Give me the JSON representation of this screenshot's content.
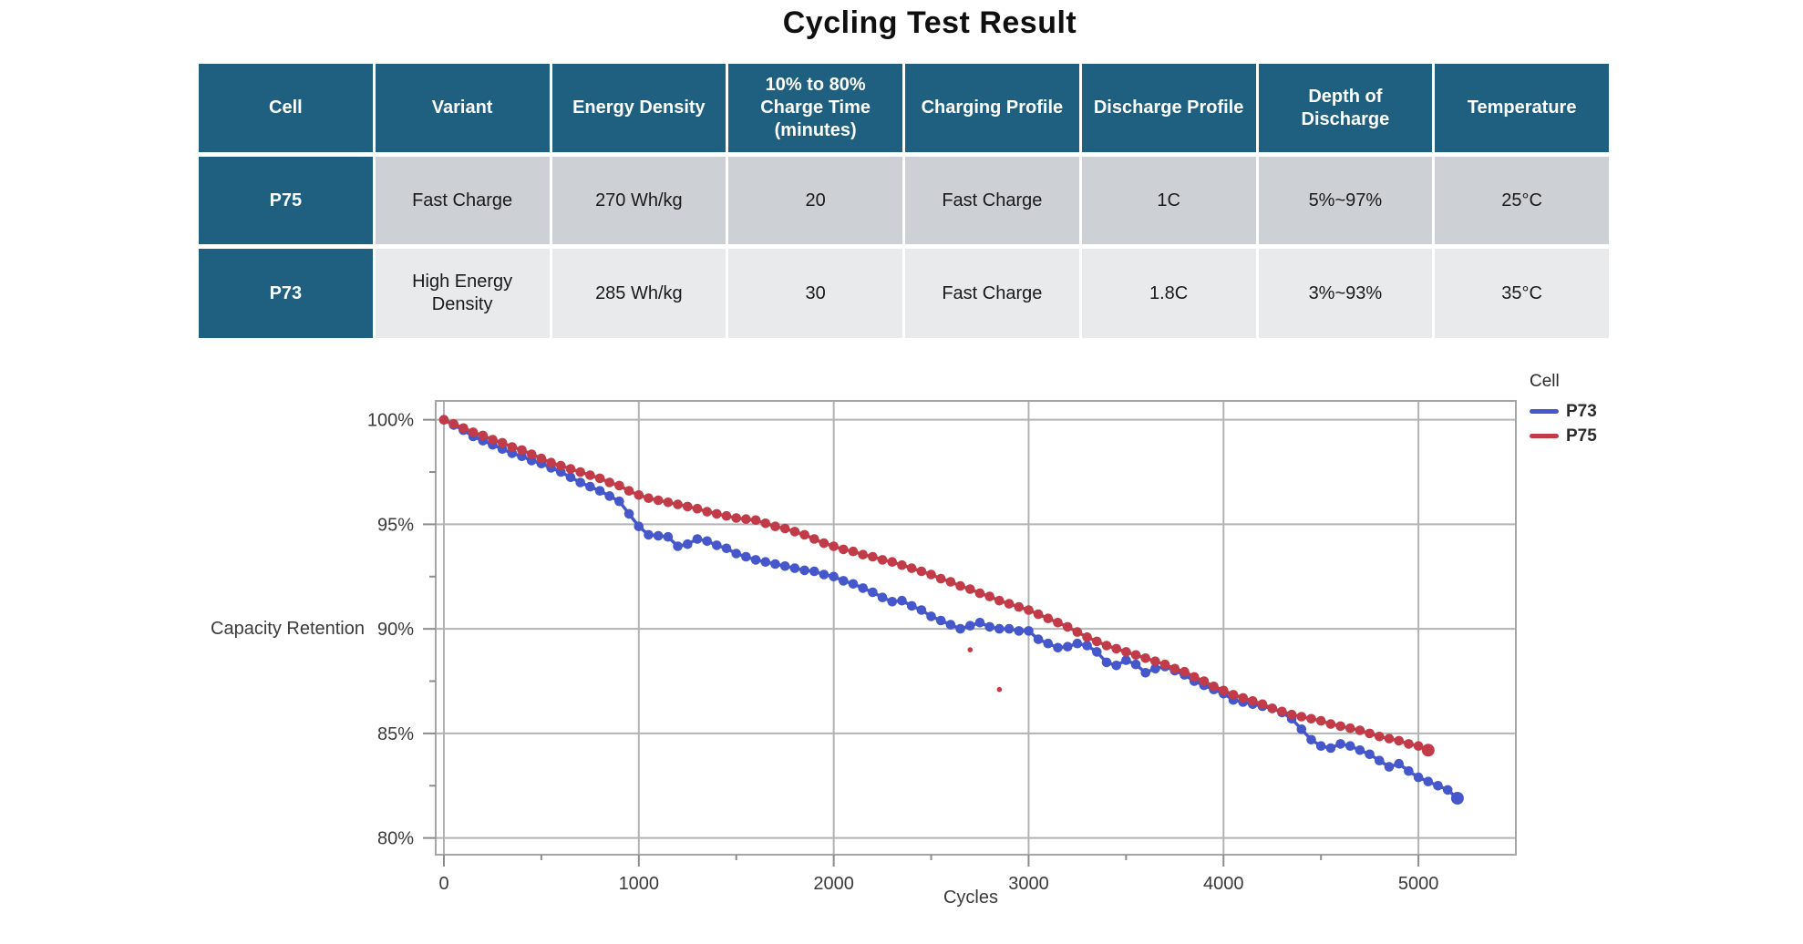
{
  "title": "Cycling Test Result",
  "table": {
    "headers": [
      "Cell",
      "Variant",
      "Energy Density",
      "10% to 80% Charge Time (minutes)",
      "Charging Profile",
      "Discharge Profile",
      "Depth of Discharge",
      "Temperature"
    ],
    "rows": [
      [
        "P75",
        "Fast Charge",
        "270 Wh/kg",
        "20",
        "Fast Charge",
        "1C",
        "5%~97%",
        "25°C"
      ],
      [
        "P73",
        "High Energy Density",
        "285 Wh/kg",
        "30",
        "Fast Charge",
        "1.8C",
        "3%~93%",
        "35°C"
      ]
    ],
    "colors": {
      "header_bg": "#1F5F7F",
      "header_text": "#FFFFFF",
      "row1_bg": "#CDD1D5",
      "row2_bg": "#E8EAEC",
      "cell_text": "#1A1A1A"
    }
  },
  "chart_data": {
    "type": "line",
    "title": "",
    "xlabel": "Cycles",
    "ylabel": "Capacity Retention",
    "legend_title": "Cell",
    "legend_position": "right",
    "grid": true,
    "xlim": [
      0,
      5500
    ],
    "ylim": [
      79.2,
      100.9
    ],
    "x_ticks": [
      {
        "v": 0,
        "label": "0"
      },
      {
        "v": 1000,
        "label": "1000"
      },
      {
        "v": 2000,
        "label": "2000"
      },
      {
        "v": 3000,
        "label": "3000"
      },
      {
        "v": 4000,
        "label": "4000"
      },
      {
        "v": 5000,
        "label": "5000"
      }
    ],
    "x_minor_ticks": [
      500,
      1500,
      2500,
      3500,
      4500
    ],
    "y_ticks": [
      {
        "v": 100,
        "label": "100%"
      },
      {
        "v": 95,
        "label": "95%"
      },
      {
        "v": 90,
        "label": "90%"
      },
      {
        "v": 85,
        "label": "85%"
      },
      {
        "v": 80,
        "label": "80%"
      }
    ],
    "y_minor_ticks": [
      97.5,
      92.5,
      87.5,
      82.5
    ],
    "colors": {
      "grid": "#B3B3B3",
      "frame": "#A6A6A6",
      "tick": "#8C8C8C",
      "tick_text": "#3A3A3A"
    },
    "series": [
      {
        "name": "P73",
        "color": "#4557CB",
        "x_start": 0,
        "x_step": 50,
        "values": [
          100.0,
          99.75,
          99.5,
          99.2,
          99.0,
          98.8,
          98.6,
          98.4,
          98.25,
          98.05,
          97.9,
          97.7,
          97.5,
          97.25,
          97.0,
          96.8,
          96.6,
          96.35,
          96.1,
          95.5,
          94.9,
          94.5,
          94.45,
          94.4,
          93.95,
          94.05,
          94.3,
          94.2,
          94.0,
          93.85,
          93.6,
          93.45,
          93.3,
          93.2,
          93.1,
          93.0,
          92.9,
          92.8,
          92.75,
          92.6,
          92.5,
          92.3,
          92.15,
          91.95,
          91.75,
          91.5,
          91.3,
          91.35,
          91.1,
          90.9,
          90.6,
          90.4,
          90.2,
          90.0,
          90.15,
          90.3,
          90.1,
          90.0,
          90.0,
          89.9,
          89.9,
          89.5,
          89.3,
          89.1,
          89.15,
          89.3,
          89.2,
          88.9,
          88.4,
          88.25,
          88.5,
          88.3,
          87.9,
          88.1,
          88.2,
          88.0,
          87.8,
          87.5,
          87.3,
          87.1,
          86.9,
          86.6,
          86.5,
          86.4,
          86.3,
          86.2,
          86.0,
          85.7,
          85.2,
          84.7,
          84.4,
          84.3,
          84.5,
          84.4,
          84.2,
          84.0,
          83.7,
          83.4,
          83.55,
          83.2,
          82.9,
          82.7,
          82.5,
          82.3,
          81.9
        ]
      },
      {
        "name": "P75",
        "color": "#C23B49",
        "x_start": 0,
        "x_step": 50,
        "values": [
          100.0,
          99.8,
          99.6,
          99.4,
          99.25,
          99.05,
          98.9,
          98.7,
          98.55,
          98.35,
          98.15,
          97.95,
          97.8,
          97.65,
          97.5,
          97.35,
          97.2,
          97.0,
          96.85,
          96.6,
          96.4,
          96.25,
          96.15,
          96.05,
          95.95,
          95.85,
          95.75,
          95.6,
          95.5,
          95.4,
          95.3,
          95.25,
          95.2,
          95.05,
          94.9,
          94.8,
          94.65,
          94.5,
          94.3,
          94.1,
          93.95,
          93.8,
          93.7,
          93.55,
          93.45,
          93.3,
          93.2,
          93.05,
          92.9,
          92.75,
          92.6,
          92.4,
          92.25,
          92.05,
          91.9,
          91.7,
          91.55,
          91.35,
          91.2,
          91.05,
          90.9,
          90.7,
          90.5,
          90.3,
          90.1,
          89.85,
          89.6,
          89.4,
          89.2,
          89.05,
          88.9,
          88.75,
          88.6,
          88.45,
          88.3,
          88.1,
          87.95,
          87.7,
          87.5,
          87.25,
          87.05,
          86.85,
          86.7,
          86.55,
          86.4,
          86.2,
          86.05,
          85.9,
          85.8,
          85.7,
          85.6,
          85.45,
          85.35,
          85.25,
          85.15,
          85.0,
          84.85,
          84.75,
          84.65,
          84.5,
          84.4,
          84.2
        ],
        "outliers": [
          [
            2700,
            89.0
          ],
          [
            2850,
            87.1
          ]
        ]
      }
    ]
  }
}
